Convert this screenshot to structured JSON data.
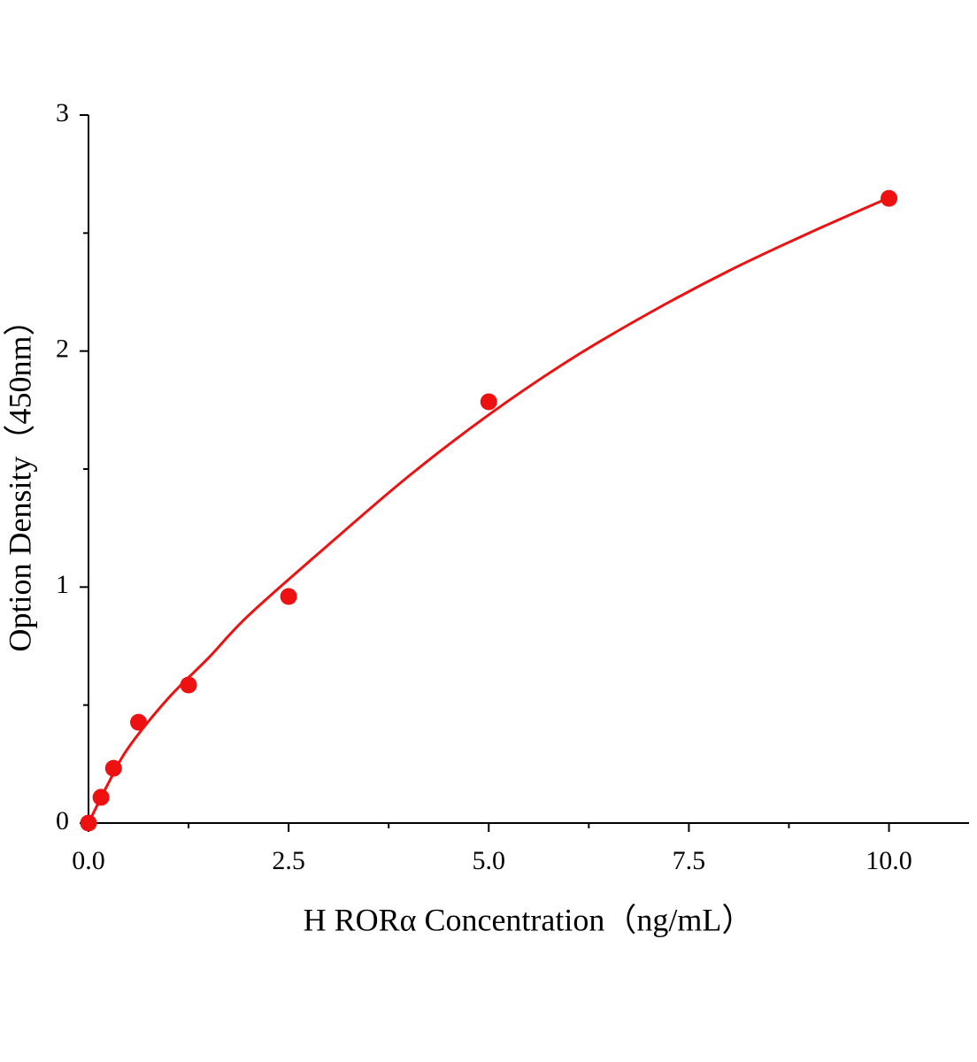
{
  "chart_data": {
    "type": "scatter",
    "x_label": "H RORα Concentration（ng/mL）",
    "y_label": "Option Density（450nm）",
    "x": [
      0,
      0.156,
      0.3125,
      0.625,
      1.25,
      2.5,
      5,
      10
    ],
    "series": [
      {
        "color": "#ee1111",
        "values": [
          0,
          0.109,
          0.232,
          0.427,
          0.585,
          0.96,
          1.785,
          2.647
        ]
      }
    ],
    "curve": {
      "color": "#ee1111",
      "x": [
        0,
        0.25,
        0.5,
        1,
        1.5,
        2,
        3,
        4,
        5,
        6,
        7,
        8,
        9,
        10
      ],
      "y": [
        0,
        0.17,
        0.32,
        0.53,
        0.7,
        0.88,
        1.18,
        1.47,
        1.73,
        1.96,
        2.16,
        2.34,
        2.5,
        2.65
      ]
    },
    "xlim": [
      0,
      11
    ],
    "ylim": [
      0,
      3
    ],
    "xticks": [
      {
        "value": 0,
        "label": "0.0"
      },
      2.5,
      {
        "value": 5,
        "label": "5.0"
      },
      7.5,
      {
        "value": 10,
        "label": "10.0"
      }
    ],
    "xminor": [
      1.25,
      3.75,
      6.25,
      8.75
    ],
    "yticks": [
      0,
      1,
      2,
      3
    ],
    "yminor": [
      0.5,
      1.5,
      2.5
    ],
    "grid": false
  }
}
